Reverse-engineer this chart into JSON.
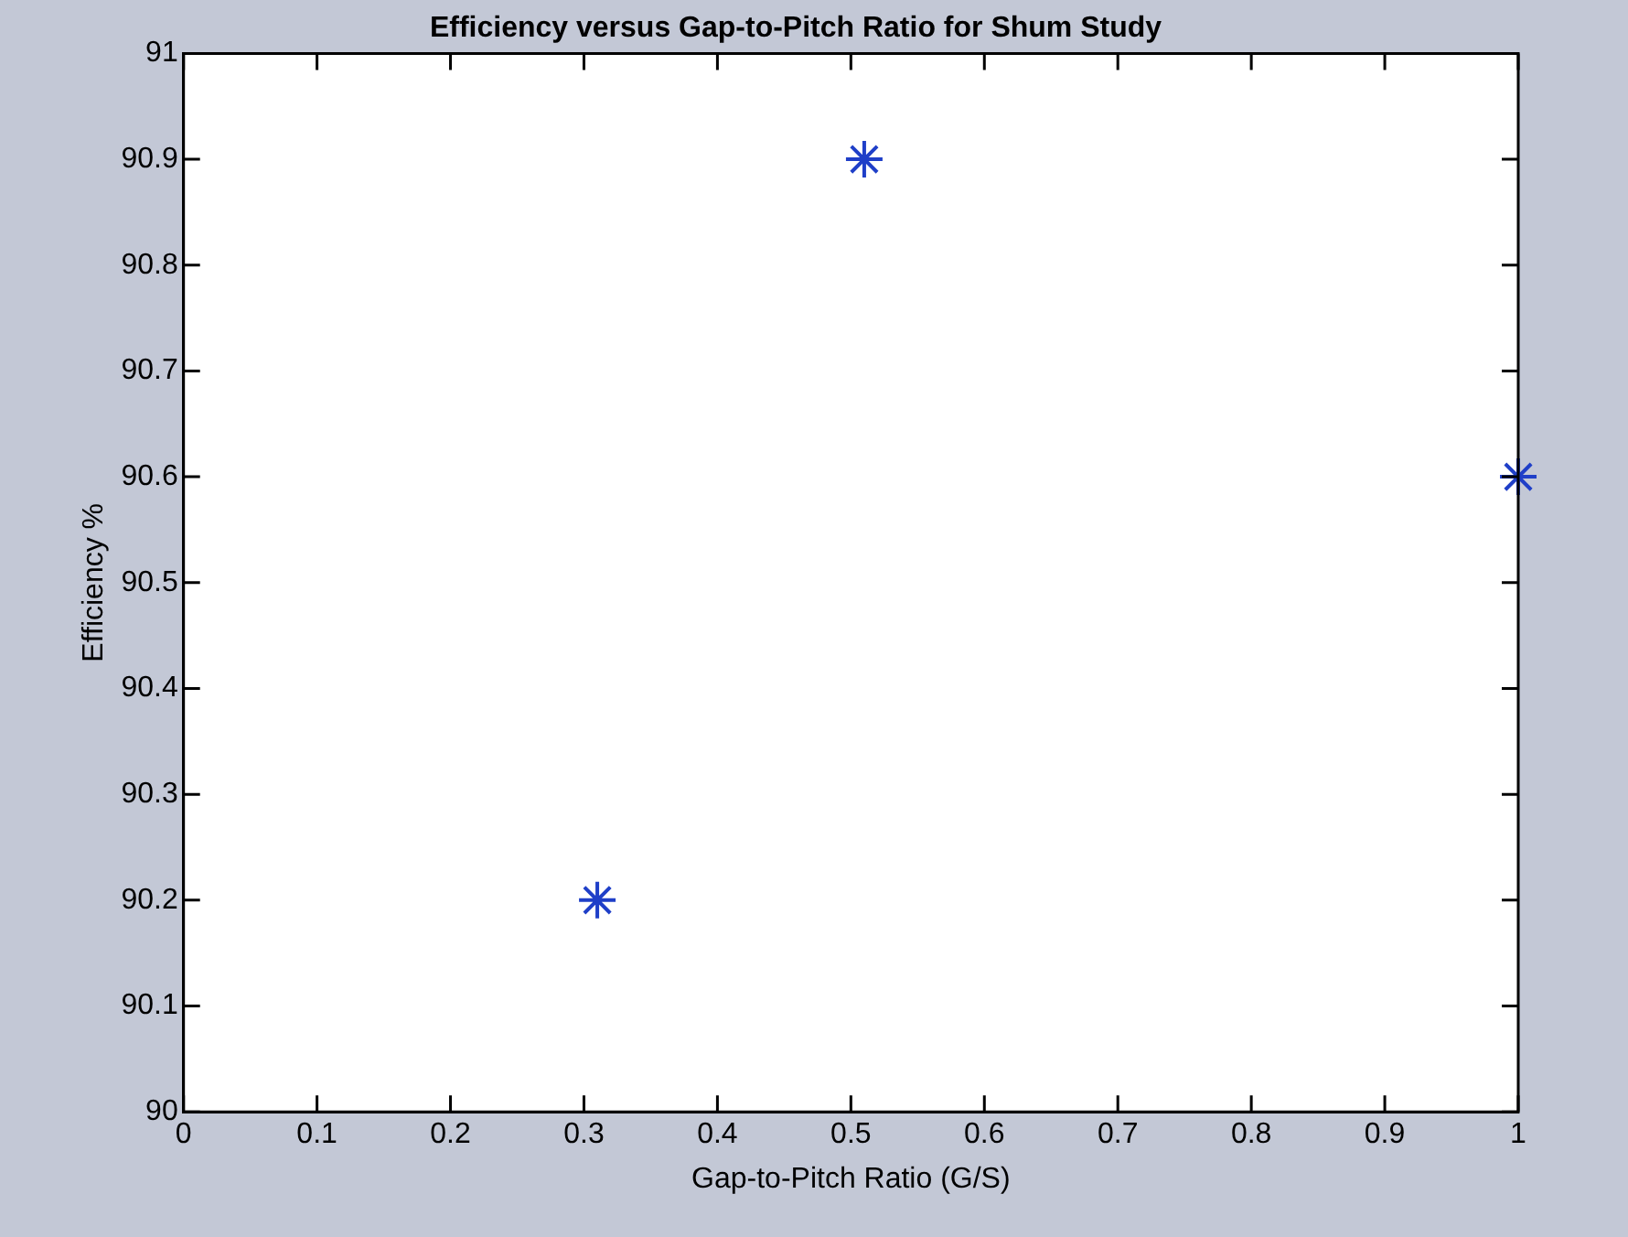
{
  "chart_data": {
    "type": "scatter",
    "title": "Efficiency versus Gap-to-Pitch Ratio for Shum Study",
    "xlabel": "Gap-to-Pitch Ratio (G/S)",
    "ylabel": "Efficiency %",
    "series": [
      {
        "color": "#1f3fc8",
        "x": [
          0.31,
          0.51,
          1.0
        ],
        "values": [
          90.2,
          90.9,
          90.6
        ]
      }
    ],
    "marker": "cross",
    "grid": false,
    "legend": false,
    "xlim": [
      0,
      1
    ],
    "xticks": [
      0,
      0.1,
      0.2,
      0.3,
      0.4,
      0.5,
      0.6,
      0.7,
      0.8,
      0.9,
      1
    ],
    "ylim": [
      90,
      91
    ],
    "yticks": [
      90,
      90.1,
      90.2,
      90.3,
      90.4,
      90.5,
      90.6,
      90.7,
      90.8,
      90.9,
      91
    ]
  }
}
